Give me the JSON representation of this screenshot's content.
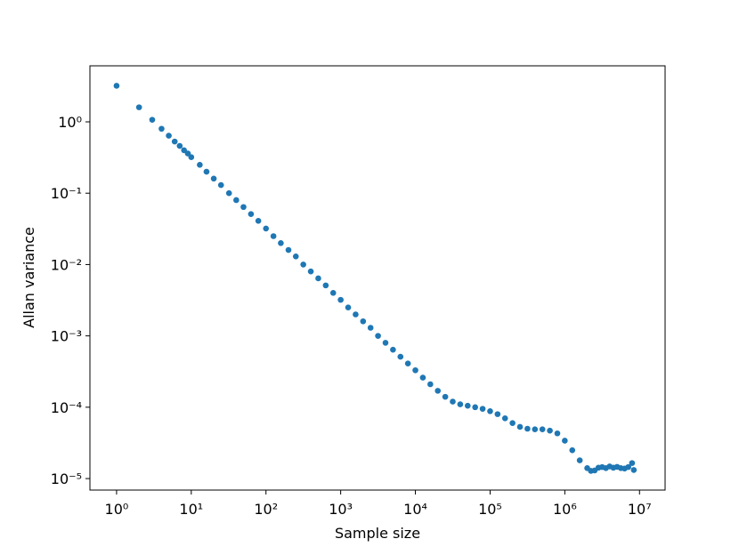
{
  "chart_data": {
    "type": "scatter",
    "x_label": "Sample size",
    "y_label": "Allan variance",
    "xscale": "log",
    "yscale": "log",
    "color": "#1f77b4",
    "xlim": [
      0.44,
      22000000
    ],
    "ylim": [
      6.9e-06,
      6.1
    ],
    "xticks": [
      {
        "value": 1,
        "label": "10⁰"
      },
      {
        "value": 10,
        "label": "10¹"
      },
      {
        "value": 100,
        "label": "10²"
      },
      {
        "value": 1000,
        "label": "10³"
      },
      {
        "value": 10000,
        "label": "10⁴"
      },
      {
        "value": 100000,
        "label": "10⁵"
      },
      {
        "value": 1000000,
        "label": "10⁶"
      },
      {
        "value": 10000000,
        "label": "10⁷"
      }
    ],
    "yticks": [
      {
        "value": 1e-05,
        "label": "10⁻⁵"
      },
      {
        "value": 0.0001,
        "label": "10⁻⁴"
      },
      {
        "value": 0.001,
        "label": "10⁻³"
      },
      {
        "value": 0.01,
        "label": "10⁻²"
      },
      {
        "value": 0.1,
        "label": "10⁻¹"
      },
      {
        "value": 1,
        "label": "10⁰"
      }
    ],
    "x": [
      1,
      2,
      3,
      4,
      5,
      6,
      7,
      8,
      9,
      10,
      13,
      16,
      20,
      25,
      32,
      40,
      50,
      63,
      79,
      100,
      126,
      158,
      200,
      251,
      316,
      398,
      501,
      631,
      794,
      1000,
      1259,
      1585,
      1995,
      2512,
      3162,
      3981,
      5012,
      6310,
      7943,
      10000,
      12589,
      15849,
      19953,
      25119,
      31623,
      39811,
      50119,
      63096,
      79433,
      100000,
      125893,
      158489,
      199526,
      251189,
      316228,
      398107,
      501187,
      630957,
      794328,
      1000000,
      1258925,
      1584893,
      1995262,
      2238721,
      2511886,
      2818383,
      3162278,
      3548134,
      3981072,
      4466836,
      5011872,
      5623413,
      6309573,
      7079458,
      7943282,
      8388608
    ],
    "values": [
      3.2,
      1.6,
      1.07,
      0.8,
      0.64,
      0.53,
      0.46,
      0.4,
      0.36,
      0.32,
      0.25,
      0.2,
      0.16,
      0.13,
      0.1,
      0.08,
      0.064,
      0.051,
      0.041,
      0.032,
      0.025,
      0.02,
      0.016,
      0.013,
      0.01,
      0.008,
      0.0064,
      0.0051,
      0.004,
      0.0032,
      0.0025,
      0.002,
      0.0016,
      0.0013,
      0.001,
      0.0008,
      0.00064,
      0.00051,
      0.00041,
      0.00033,
      0.00026,
      0.00021,
      0.00017,
      0.00014,
      0.00012,
      0.00011,
      0.000105,
      0.0001,
      9.5e-05,
      8.8e-05,
      8e-05,
      7e-05,
      6e-05,
      5.3e-05,
      5e-05,
      4.9e-05,
      4.9e-05,
      4.7e-05,
      4.3e-05,
      3.4e-05,
      2.5e-05,
      1.8e-05,
      1.4e-05,
      1.28e-05,
      1.3e-05,
      1.42e-05,
      1.45e-05,
      1.4e-05,
      1.48e-05,
      1.42e-05,
      1.46e-05,
      1.4e-05,
      1.38e-05,
      1.45e-05,
      1.65e-05,
      1.32e-05
    ]
  }
}
